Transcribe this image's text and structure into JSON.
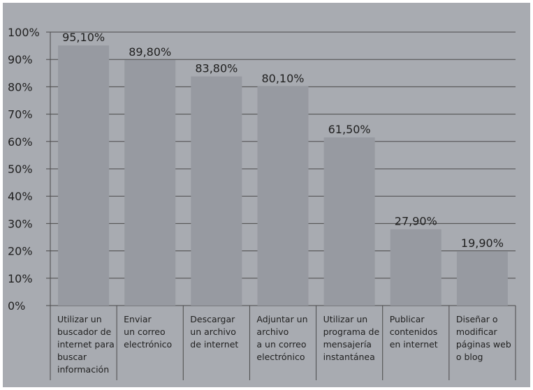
{
  "chart_data": {
    "type": "bar",
    "categories": [
      "Utilizar un buscador de internet para buscar información",
      "Enviar un correo electrónico",
      "Descargar un archivo de internet",
      "Adjuntar un archivo a un correo electrónico",
      "Utilizar un programa de mensajería instantánea",
      "Publicar contenidos en internet",
      "Diseñar o modificar páginas web o blog"
    ],
    "category_lines": [
      [
        "Utilizar un",
        "buscador de",
        "internet para",
        "buscar",
        "información"
      ],
      [
        "Enviar",
        "un correo",
        "electrónico"
      ],
      [
        "Descargar",
        "un archivo",
        "de internet"
      ],
      [
        "Adjuntar un",
        "archivo",
        "a un correo",
        "electrónico"
      ],
      [
        "Utilizar un",
        "programa de",
        "mensajería",
        "instantánea"
      ],
      [
        "Publicar",
        "contenidos",
        "en internet"
      ],
      [
        "Diseñar o",
        "modificar",
        "páginas web",
        "o blog"
      ]
    ],
    "values": [
      95.1,
      89.8,
      83.8,
      80.1,
      61.5,
      27.9,
      19.9
    ],
    "data_labels": [
      "95,10%",
      "89,80%",
      "83,80%",
      "80,10%",
      "61,50%",
      "27,90%",
      "19,90%"
    ],
    "y_ticks": [
      0,
      10,
      20,
      30,
      40,
      50,
      60,
      70,
      80,
      90,
      100
    ],
    "y_tick_labels": [
      "0%",
      "10%",
      "20%",
      "30%",
      "40%",
      "50%",
      "60%",
      "70%",
      "80%",
      "90%",
      "100%"
    ],
    "ylim": [
      0,
      100
    ],
    "grid": true,
    "title": "",
    "xlabel": "",
    "ylabel": "",
    "colors": {
      "background": "#a8abb1",
      "bar": "#979aa1",
      "grid": "#4a4a4a",
      "text": "#1f1f1f"
    }
  }
}
